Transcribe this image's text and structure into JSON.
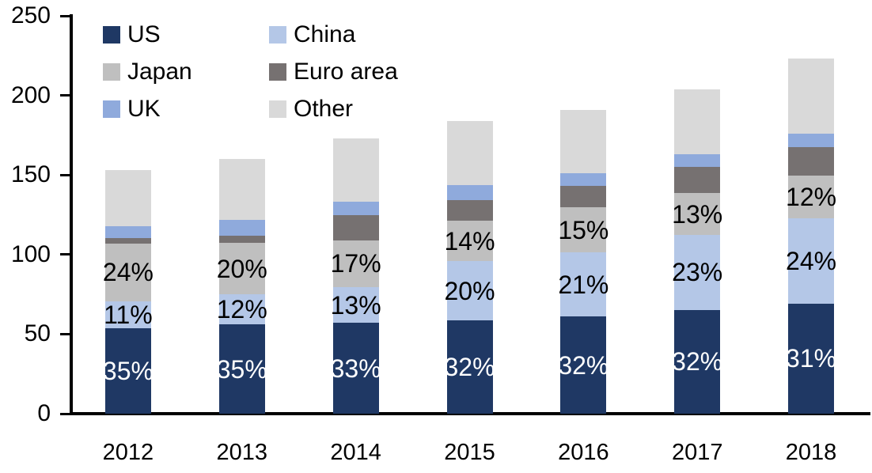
{
  "chart_data": {
    "type": "bar",
    "variant": "stacked",
    "title": "",
    "xlabel": "",
    "ylabel": "",
    "categories": [
      "2012",
      "2013",
      "2014",
      "2015",
      "2016",
      "2017",
      "2018"
    ],
    "totals": [
      153,
      160,
      173,
      184,
      191,
      204,
      223
    ],
    "series": [
      {
        "name": "US",
        "color": "#1F3864",
        "label_text_color": "#FFFFFF",
        "pct": [
          35,
          35,
          33,
          32,
          32,
          32,
          31
        ],
        "labels": [
          "35%",
          "35%",
          "33%",
          "32%",
          "32%",
          "32%",
          "31%"
        ]
      },
      {
        "name": "China",
        "color": "#B4C7E7",
        "label_text_color": "#000000",
        "pct": [
          11,
          12,
          13,
          20,
          21,
          23,
          24
        ],
        "labels": [
          "11%",
          "12%",
          "13%",
          "20%",
          "21%",
          "23%",
          "24%"
        ]
      },
      {
        "name": "Japan",
        "color": "#BFBFBF",
        "label_text_color": "#000000",
        "pct": [
          24,
          20,
          17,
          14,
          15,
          13,
          12
        ],
        "labels": [
          "24%",
          "20%",
          "17%",
          "14%",
          "15%",
          "13%",
          "12%"
        ]
      },
      {
        "name": "Euro area",
        "color": "#767171",
        "label_text_color": "#000000",
        "pct": [
          2,
          3,
          9,
          7,
          7,
          8,
          8
        ],
        "labels": null
      },
      {
        "name": "UK",
        "color": "#8FAADC",
        "label_text_color": "#000000",
        "pct": [
          5,
          6,
          5,
          5,
          4,
          4,
          4
        ],
        "labels": null
      },
      {
        "name": "Other",
        "color": "#D9D9D9",
        "label_text_color": "#000000",
        "pct": [
          23,
          24,
          23,
          22,
          21,
          20,
          21
        ],
        "labels": null
      }
    ],
    "ylim": [
      0,
      250
    ],
    "yticks": [
      0,
      50,
      100,
      150,
      200,
      250
    ],
    "legend": {
      "position": "top-left",
      "columns": 2,
      "order": [
        "US",
        "China",
        "Japan",
        "Euro area",
        "UK",
        "Other"
      ]
    },
    "grid": false,
    "axis_color": "#000000"
  }
}
